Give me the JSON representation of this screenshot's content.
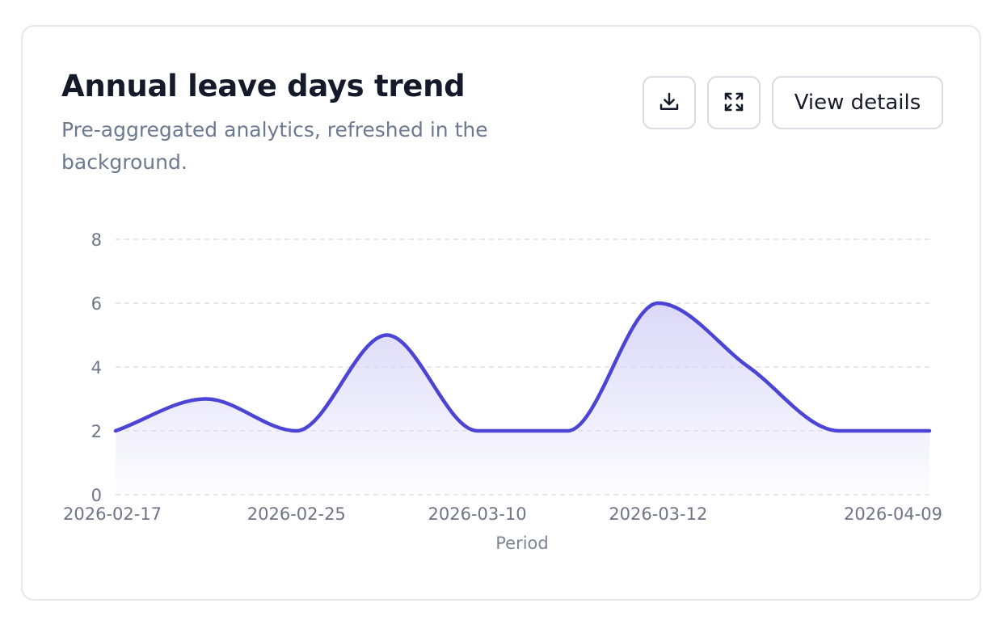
{
  "header": {
    "title": "Annual leave days trend",
    "subtitle": "Pre-aggregated analytics, refreshed in the background."
  },
  "actions": {
    "download_icon": "download-icon",
    "expand_icon": "expand-icon",
    "view_details_label": "View details"
  },
  "colors": {
    "line": "#4b44d4",
    "area_top": "#d9d6f7",
    "grid": "#dde0e6",
    "tick_text": "#6e7585"
  },
  "chart_data": {
    "type": "area",
    "title": "Annual leave days trend",
    "subtitle": "Pre-aggregated analytics, refreshed in the background.",
    "xlabel": "Period",
    "ylabel": "",
    "x": [
      "2026-02-17",
      "",
      "2026-02-25",
      "",
      "2026-03-10",
      "",
      "2026-03-12",
      "",
      "",
      "2026-04-09"
    ],
    "xtick_labels": [
      "2026-02-17",
      "2026-02-25",
      "2026-03-10",
      "2026-03-12",
      "2026-04-09"
    ],
    "series": [
      {
        "values": [
          2,
          3,
          2,
          5,
          2,
          2,
          6,
          4,
          2,
          2
        ]
      }
    ],
    "ylim": [
      0,
      8
    ],
    "yticks": [
      0,
      2,
      4,
      6,
      8
    ],
    "grid": "horizontal dashed",
    "legend": "none",
    "curve": "smooth"
  }
}
